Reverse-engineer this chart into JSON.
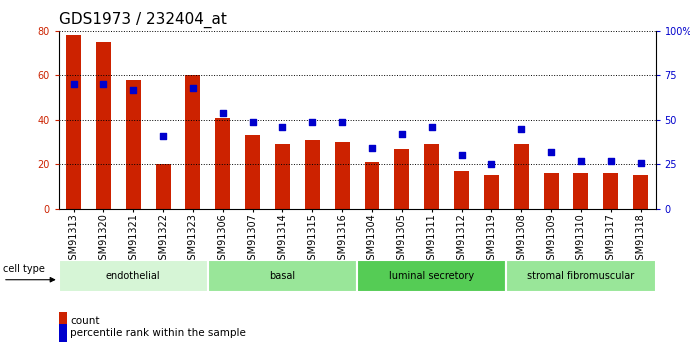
{
  "title": "GDS1973 / 232404_at",
  "samples": [
    "GSM91313",
    "GSM91320",
    "GSM91321",
    "GSM91322",
    "GSM91323",
    "GSM91306",
    "GSM91307",
    "GSM91314",
    "GSM91315",
    "GSM91316",
    "GSM91304",
    "GSM91305",
    "GSM91311",
    "GSM91312",
    "GSM91319",
    "GSM91308",
    "GSM91309",
    "GSM91310",
    "GSM91317",
    "GSM91318"
  ],
  "counts": [
    78,
    75,
    58,
    20,
    60,
    41,
    33,
    29,
    31,
    30,
    21,
    27,
    29,
    17,
    15,
    29,
    16,
    16,
    16,
    15
  ],
  "percentiles": [
    70,
    70,
    67,
    41,
    68,
    54,
    49,
    46,
    49,
    49,
    34,
    42,
    46,
    30,
    25,
    45,
    32,
    27,
    27,
    26
  ],
  "groups": [
    {
      "label": "endothelial",
      "start": 0,
      "end": 5,
      "color": "#ccf0cc"
    },
    {
      "label": "basal",
      "start": 5,
      "end": 10,
      "color": "#88dd88"
    },
    {
      "label": "luminal secretory",
      "start": 10,
      "end": 15,
      "color": "#44cc44"
    },
    {
      "label": "stromal fibromuscular",
      "start": 15,
      "end": 20,
      "color": "#88dd88"
    }
  ],
  "bar_color": "#cc2200",
  "dot_color": "#0000cc",
  "left_ylim": [
    0,
    80
  ],
  "right_ylim": [
    0,
    100
  ],
  "left_yticks": [
    0,
    20,
    40,
    60,
    80
  ],
  "right_yticks": [
    0,
    25,
    50,
    75,
    100
  ],
  "right_yticklabels": [
    "0",
    "25",
    "50",
    "75",
    "100%"
  ],
  "bg_color": "#ffffff",
  "bar_width": 0.5,
  "title_fontsize": 11,
  "tick_fontsize": 7,
  "legend_items": [
    "count",
    "percentile rank within the sample"
  ]
}
